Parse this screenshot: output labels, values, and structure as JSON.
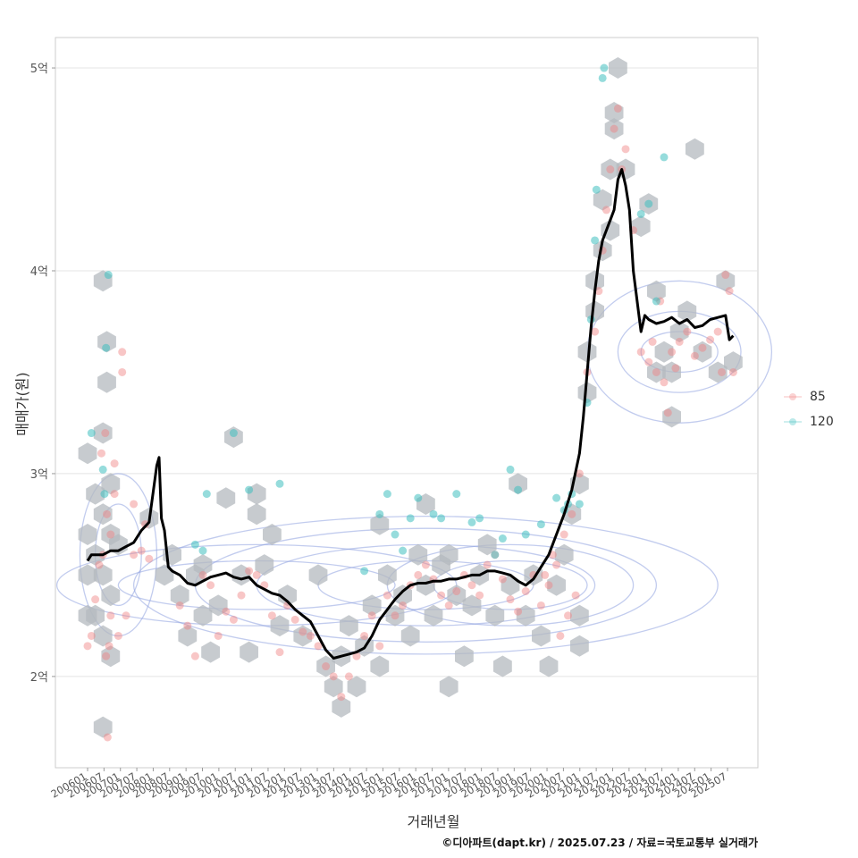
{
  "chart_data": {
    "type": "scatter",
    "ylabel": "매매가(원)",
    "xlabel": "거래년월",
    "caption": "©디아파트(dapt.kr) / 2025.07.23 / 자료=국토교통부 실거래가",
    "y_ticks": [
      {
        "value": 2.0,
        "label": "2억"
      },
      {
        "value": 3.0,
        "label": "3억"
      },
      {
        "value": 4.0,
        "label": "4억"
      },
      {
        "value": 5.0,
        "label": "5억"
      }
    ],
    "ylim": [
      1.55,
      5.15
    ],
    "x_ticks": [
      "200601",
      "200607",
      "200701",
      "200707",
      "200801",
      "200807",
      "200901",
      "200907",
      "201001",
      "201007",
      "201101",
      "201107",
      "201201",
      "201207",
      "201301",
      "201307",
      "201401",
      "201407",
      "201501",
      "201507",
      "201601",
      "201607",
      "201701",
      "201707",
      "201801",
      "201807",
      "201901",
      "201907",
      "202001",
      "202007",
      "202101",
      "202107",
      "202201",
      "202207",
      "202301",
      "202307",
      "202401",
      "202407",
      "202501",
      "202507"
    ],
    "grid": true,
    "legend": {
      "position": "right",
      "entries": [
        {
          "label": "85",
          "color": "#f08080"
        },
        {
          "label": "120",
          "color": "#40c0c0"
        }
      ]
    },
    "series": [
      {
        "name": "trend",
        "color": "#000000",
        "points": [
          [
            0,
            2.57
          ],
          [
            0.5,
            2.6
          ],
          [
            1,
            2.6
          ],
          [
            2,
            2.6
          ],
          [
            3,
            2.62
          ],
          [
            4,
            2.62
          ],
          [
            5,
            2.64
          ],
          [
            6,
            2.66
          ],
          [
            7,
            2.72
          ],
          [
            8,
            2.76
          ],
          [
            9,
            3.04
          ],
          [
            9.3,
            3.08
          ],
          [
            9.6,
            2.78
          ],
          [
            10,
            2.72
          ],
          [
            10.5,
            2.54
          ],
          [
            11,
            2.52
          ],
          [
            12,
            2.5
          ],
          [
            13,
            2.46
          ],
          [
            14,
            2.45
          ],
          [
            15,
            2.47
          ],
          [
            16,
            2.49
          ],
          [
            17,
            2.5
          ],
          [
            18,
            2.51
          ],
          [
            19,
            2.49
          ],
          [
            20,
            2.48
          ],
          [
            21,
            2.49
          ],
          [
            22,
            2.45
          ],
          [
            23,
            2.43
          ],
          [
            24,
            2.41
          ],
          [
            25,
            2.4
          ],
          [
            26,
            2.37
          ],
          [
            27,
            2.33
          ],
          [
            28,
            2.3
          ],
          [
            29,
            2.27
          ],
          [
            30,
            2.2
          ],
          [
            31,
            2.13
          ],
          [
            32,
            2.09
          ],
          [
            33,
            2.1
          ],
          [
            34,
            2.11
          ],
          [
            35,
            2.12
          ],
          [
            36,
            2.14
          ],
          [
            37,
            2.2
          ],
          [
            38,
            2.28
          ],
          [
            39,
            2.33
          ],
          [
            40,
            2.38
          ],
          [
            41,
            2.42
          ],
          [
            42,
            2.45
          ],
          [
            43,
            2.46
          ],
          [
            44,
            2.46
          ],
          [
            45,
            2.47
          ],
          [
            46,
            2.47
          ],
          [
            47,
            2.48
          ],
          [
            48,
            2.48
          ],
          [
            49,
            2.49
          ],
          [
            50,
            2.5
          ],
          [
            51,
            2.5
          ],
          [
            52,
            2.52
          ],
          [
            53,
            2.52
          ],
          [
            54,
            2.51
          ],
          [
            55,
            2.5
          ],
          [
            56,
            2.47
          ],
          [
            57,
            2.45
          ],
          [
            58,
            2.48
          ],
          [
            59,
            2.54
          ],
          [
            60,
            2.6
          ],
          [
            61,
            2.7
          ],
          [
            62,
            2.8
          ],
          [
            63,
            2.92
          ],
          [
            64,
            3.1
          ],
          [
            64.5,
            3.28
          ],
          [
            65,
            3.5
          ],
          [
            65.5,
            3.72
          ],
          [
            66,
            3.9
          ],
          [
            66.5,
            4.05
          ],
          [
            67,
            4.15
          ],
          [
            67.5,
            4.2
          ],
          [
            68,
            4.25
          ],
          [
            68.5,
            4.3
          ],
          [
            69,
            4.45
          ],
          [
            69.5,
            4.5
          ],
          [
            70,
            4.42
          ],
          [
            70.5,
            4.3
          ],
          [
            71,
            4.0
          ],
          [
            71.5,
            3.85
          ],
          [
            72,
            3.7
          ],
          [
            72.5,
            3.78
          ],
          [
            73,
            3.76
          ],
          [
            74,
            3.74
          ],
          [
            75,
            3.75
          ],
          [
            76,
            3.77
          ],
          [
            77,
            3.74
          ],
          [
            78,
            3.76
          ],
          [
            79,
            3.72
          ],
          [
            80,
            3.73
          ],
          [
            81,
            3.76
          ],
          [
            82,
            3.77
          ],
          [
            83,
            3.78
          ],
          [
            83.5,
            3.66
          ],
          [
            84,
            3.68
          ]
        ]
      }
    ],
    "points_85": [
      [
        0,
        2.15
      ],
      [
        0.5,
        2.2
      ],
      [
        1,
        2.38
      ],
      [
        1.5,
        2.55
      ],
      [
        2,
        2.6
      ],
      [
        2.5,
        2.8
      ],
      [
        3,
        2.7
      ],
      [
        3.5,
        3.05
      ],
      [
        2.3,
        3.2
      ],
      [
        1.8,
        3.1
      ],
      [
        3,
        2.3
      ],
      [
        2.4,
        2.1
      ],
      [
        2.8,
        2.15
      ],
      [
        2.6,
        1.7
      ],
      [
        4,
        2.2
      ],
      [
        5,
        2.3
      ],
      [
        6,
        2.6
      ],
      [
        7,
        2.62
      ],
      [
        8,
        2.58
      ],
      [
        4.5,
        3.6
      ],
      [
        4.5,
        3.5
      ],
      [
        3.5,
        2.9
      ],
      [
        6,
        2.85
      ],
      [
        7.5,
        2.75
      ],
      [
        12,
        2.35
      ],
      [
        13,
        2.25
      ],
      [
        14,
        2.1
      ],
      [
        15,
        2.5
      ],
      [
        16,
        2.45
      ],
      [
        17,
        2.2
      ],
      [
        18,
        2.32
      ],
      [
        19,
        2.28
      ],
      [
        20,
        2.4
      ],
      [
        21,
        2.52
      ],
      [
        22,
        2.5
      ],
      [
        23,
        2.45
      ],
      [
        24,
        2.3
      ],
      [
        25,
        2.12
      ],
      [
        26,
        2.35
      ],
      [
        27,
        2.28
      ],
      [
        28,
        2.22
      ],
      [
        29,
        2.2
      ],
      [
        30,
        2.15
      ],
      [
        31,
        2.05
      ],
      [
        32,
        2.0
      ],
      [
        33,
        1.9
      ],
      [
        34,
        2.0
      ],
      [
        35,
        2.1
      ],
      [
        36,
        2.2
      ],
      [
        37,
        2.3
      ],
      [
        38,
        2.15
      ],
      [
        39,
        2.4
      ],
      [
        40,
        2.3
      ],
      [
        41,
        2.35
      ],
      [
        42,
        2.45
      ],
      [
        43,
        2.5
      ],
      [
        44,
        2.55
      ],
      [
        45,
        2.48
      ],
      [
        46,
        2.4
      ],
      [
        47,
        2.35
      ],
      [
        48,
        2.42
      ],
      [
        49,
        2.5
      ],
      [
        50,
        2.45
      ],
      [
        51,
        2.4
      ],
      [
        52,
        2.55
      ],
      [
        53,
        2.6
      ],
      [
        54,
        2.48
      ],
      [
        55,
        2.38
      ],
      [
        56,
        2.32
      ],
      [
        57,
        2.42
      ],
      [
        58,
        2.5
      ],
      [
        59,
        2.35
      ],
      [
        60,
        2.45
      ],
      [
        61,
        2.55
      ],
      [
        62,
        2.7
      ],
      [
        63,
        2.8
      ],
      [
        64,
        3.0
      ],
      [
        63.5,
        2.4
      ],
      [
        62.5,
        2.3
      ],
      [
        61.5,
        2.2
      ],
      [
        60.5,
        2.6
      ],
      [
        59.5,
        2.5
      ],
      [
        65,
        3.5
      ],
      [
        66,
        3.7
      ],
      [
        66.5,
        3.9
      ],
      [
        67,
        4.1
      ],
      [
        67.5,
        4.3
      ],
      [
        68,
        4.5
      ],
      [
        68.5,
        4.7
      ],
      [
        69,
        4.8
      ],
      [
        69.5,
        4.5
      ],
      [
        70,
        4.6
      ],
      [
        71,
        4.2
      ],
      [
        72,
        3.6
      ],
      [
        73,
        3.55
      ],
      [
        74,
        3.5
      ],
      [
        75,
        3.45
      ],
      [
        76,
        3.6
      ],
      [
        77,
        3.65
      ],
      [
        78,
        3.7
      ],
      [
        79,
        3.58
      ],
      [
        80,
        3.62
      ],
      [
        81,
        3.66
      ],
      [
        82,
        3.7
      ],
      [
        83,
        3.98
      ],
      [
        83.5,
        3.9
      ],
      [
        84,
        3.5
      ],
      [
        82.5,
        3.5
      ],
      [
        75.5,
        3.3
      ],
      [
        74.5,
        3.85
      ],
      [
        76.5,
        3.52
      ],
      [
        73.5,
        3.65
      ]
    ],
    "points_120": [
      [
        0.5,
        3.2
      ],
      [
        2,
        3.02
      ],
      [
        2.2,
        2.9
      ],
      [
        2.7,
        3.98
      ],
      [
        2.4,
        3.62
      ],
      [
        14,
        2.65
      ],
      [
        15,
        2.62
      ],
      [
        15.5,
        2.9
      ],
      [
        19,
        3.2
      ],
      [
        21,
        2.92
      ],
      [
        25,
        2.95
      ],
      [
        36,
        2.52
      ],
      [
        38,
        2.8
      ],
      [
        39,
        2.9
      ],
      [
        40,
        2.7
      ],
      [
        41,
        2.62
      ],
      [
        42,
        2.78
      ],
      [
        43,
        2.88
      ],
      [
        45,
        2.8
      ],
      [
        46,
        2.78
      ],
      [
        48,
        2.9
      ],
      [
        50,
        2.76
      ],
      [
        51,
        2.78
      ],
      [
        53,
        2.6
      ],
      [
        54,
        2.68
      ],
      [
        55,
        3.02
      ],
      [
        56,
        2.92
      ],
      [
        57,
        2.7
      ],
      [
        59,
        2.75
      ],
      [
        61,
        2.88
      ],
      [
        62,
        2.82
      ],
      [
        62.5,
        2.85
      ],
      [
        63,
        2.9
      ],
      [
        64,
        2.85
      ],
      [
        65,
        3.35
      ],
      [
        65.5,
        3.76
      ],
      [
        66,
        4.15
      ],
      [
        66.2,
        4.4
      ],
      [
        67,
        4.95
      ],
      [
        67.2,
        5.0
      ],
      [
        72,
        4.28
      ],
      [
        73,
        4.33
      ],
      [
        74,
        3.85
      ],
      [
        75,
        4.56
      ]
    ],
    "hex_centers": [
      [
        0,
        2.7
      ],
      [
        0,
        2.5
      ],
      [
        0,
        2.3
      ],
      [
        0,
        3.1
      ],
      [
        1,
        2.9
      ],
      [
        1,
        2.6
      ],
      [
        1,
        2.3
      ],
      [
        2,
        2.8
      ],
      [
        2,
        2.5
      ],
      [
        2,
        2.2
      ],
      [
        2,
        3.2
      ],
      [
        2,
        3.95
      ],
      [
        2.5,
        3.45
      ],
      [
        2.5,
        3.65
      ],
      [
        2,
        1.75
      ],
      [
        3,
        2.7
      ],
      [
        3,
        2.4
      ],
      [
        3,
        2.1
      ],
      [
        3,
        2.95
      ],
      [
        4,
        2.65
      ],
      [
        8,
        2.78
      ],
      [
        10,
        2.5
      ],
      [
        11,
        2.6
      ],
      [
        12,
        2.4
      ],
      [
        13,
        2.2
      ],
      [
        14,
        2.5
      ],
      [
        15,
        2.3
      ],
      [
        15,
        2.55
      ],
      [
        16,
        2.12
      ],
      [
        17,
        2.35
      ],
      [
        18,
        2.88
      ],
      [
        19,
        3.18
      ],
      [
        20,
        2.5
      ],
      [
        21,
        2.12
      ],
      [
        22,
        2.8
      ],
      [
        22,
        2.9
      ],
      [
        23,
        2.55
      ],
      [
        24,
        2.7
      ],
      [
        25,
        2.25
      ],
      [
        26,
        2.4
      ],
      [
        28,
        2.2
      ],
      [
        30,
        2.5
      ],
      [
        31,
        2.05
      ],
      [
        32,
        1.95
      ],
      [
        33,
        1.85
      ],
      [
        33,
        2.1
      ],
      [
        34,
        2.25
      ],
      [
        35,
        1.95
      ],
      [
        36,
        2.15
      ],
      [
        37,
        2.35
      ],
      [
        38,
        2.05
      ],
      [
        38,
        2.75
      ],
      [
        39,
        2.5
      ],
      [
        40,
        2.3
      ],
      [
        41,
        2.4
      ],
      [
        42,
        2.2
      ],
      [
        43,
        2.6
      ],
      [
        44,
        2.45
      ],
      [
        44,
        2.85
      ],
      [
        45,
        2.3
      ],
      [
        46,
        2.55
      ],
      [
        47,
        1.95
      ],
      [
        47,
        2.6
      ],
      [
        48,
        2.4
      ],
      [
        49,
        2.1
      ],
      [
        50,
        2.35
      ],
      [
        51,
        2.5
      ],
      [
        52,
        2.65
      ],
      [
        53,
        2.3
      ],
      [
        54,
        2.05
      ],
      [
        55,
        2.45
      ],
      [
        56,
        2.95
      ],
      [
        57,
        2.3
      ],
      [
        58,
        2.5
      ],
      [
        59,
        2.2
      ],
      [
        60,
        2.05
      ],
      [
        61,
        2.45
      ],
      [
        62,
        2.6
      ],
      [
        63,
        2.8
      ],
      [
        64,
        2.3
      ],
      [
        64,
        2.15
      ],
      [
        64,
        2.95
      ],
      [
        65,
        3.4
      ],
      [
        65,
        3.6
      ],
      [
        66,
        3.8
      ],
      [
        66,
        3.95
      ],
      [
        67,
        4.1
      ],
      [
        67,
        4.35
      ],
      [
        68,
        4.2
      ],
      [
        68,
        4.5
      ],
      [
        68.5,
        4.7
      ],
      [
        68.5,
        4.78
      ],
      [
        69,
        5.0
      ],
      [
        70,
        4.5
      ],
      [
        72,
        4.22
      ],
      [
        73,
        4.33
      ],
      [
        74,
        3.5
      ],
      [
        74,
        3.9
      ],
      [
        75,
        3.6
      ],
      [
        76,
        3.28
      ],
      [
        76,
        3.5
      ],
      [
        77,
        3.7
      ],
      [
        78,
        3.8
      ],
      [
        79,
        4.6
      ],
      [
        80,
        3.6
      ],
      [
        82,
        3.5
      ],
      [
        83,
        3.95
      ],
      [
        84,
        3.55
      ]
    ]
  }
}
